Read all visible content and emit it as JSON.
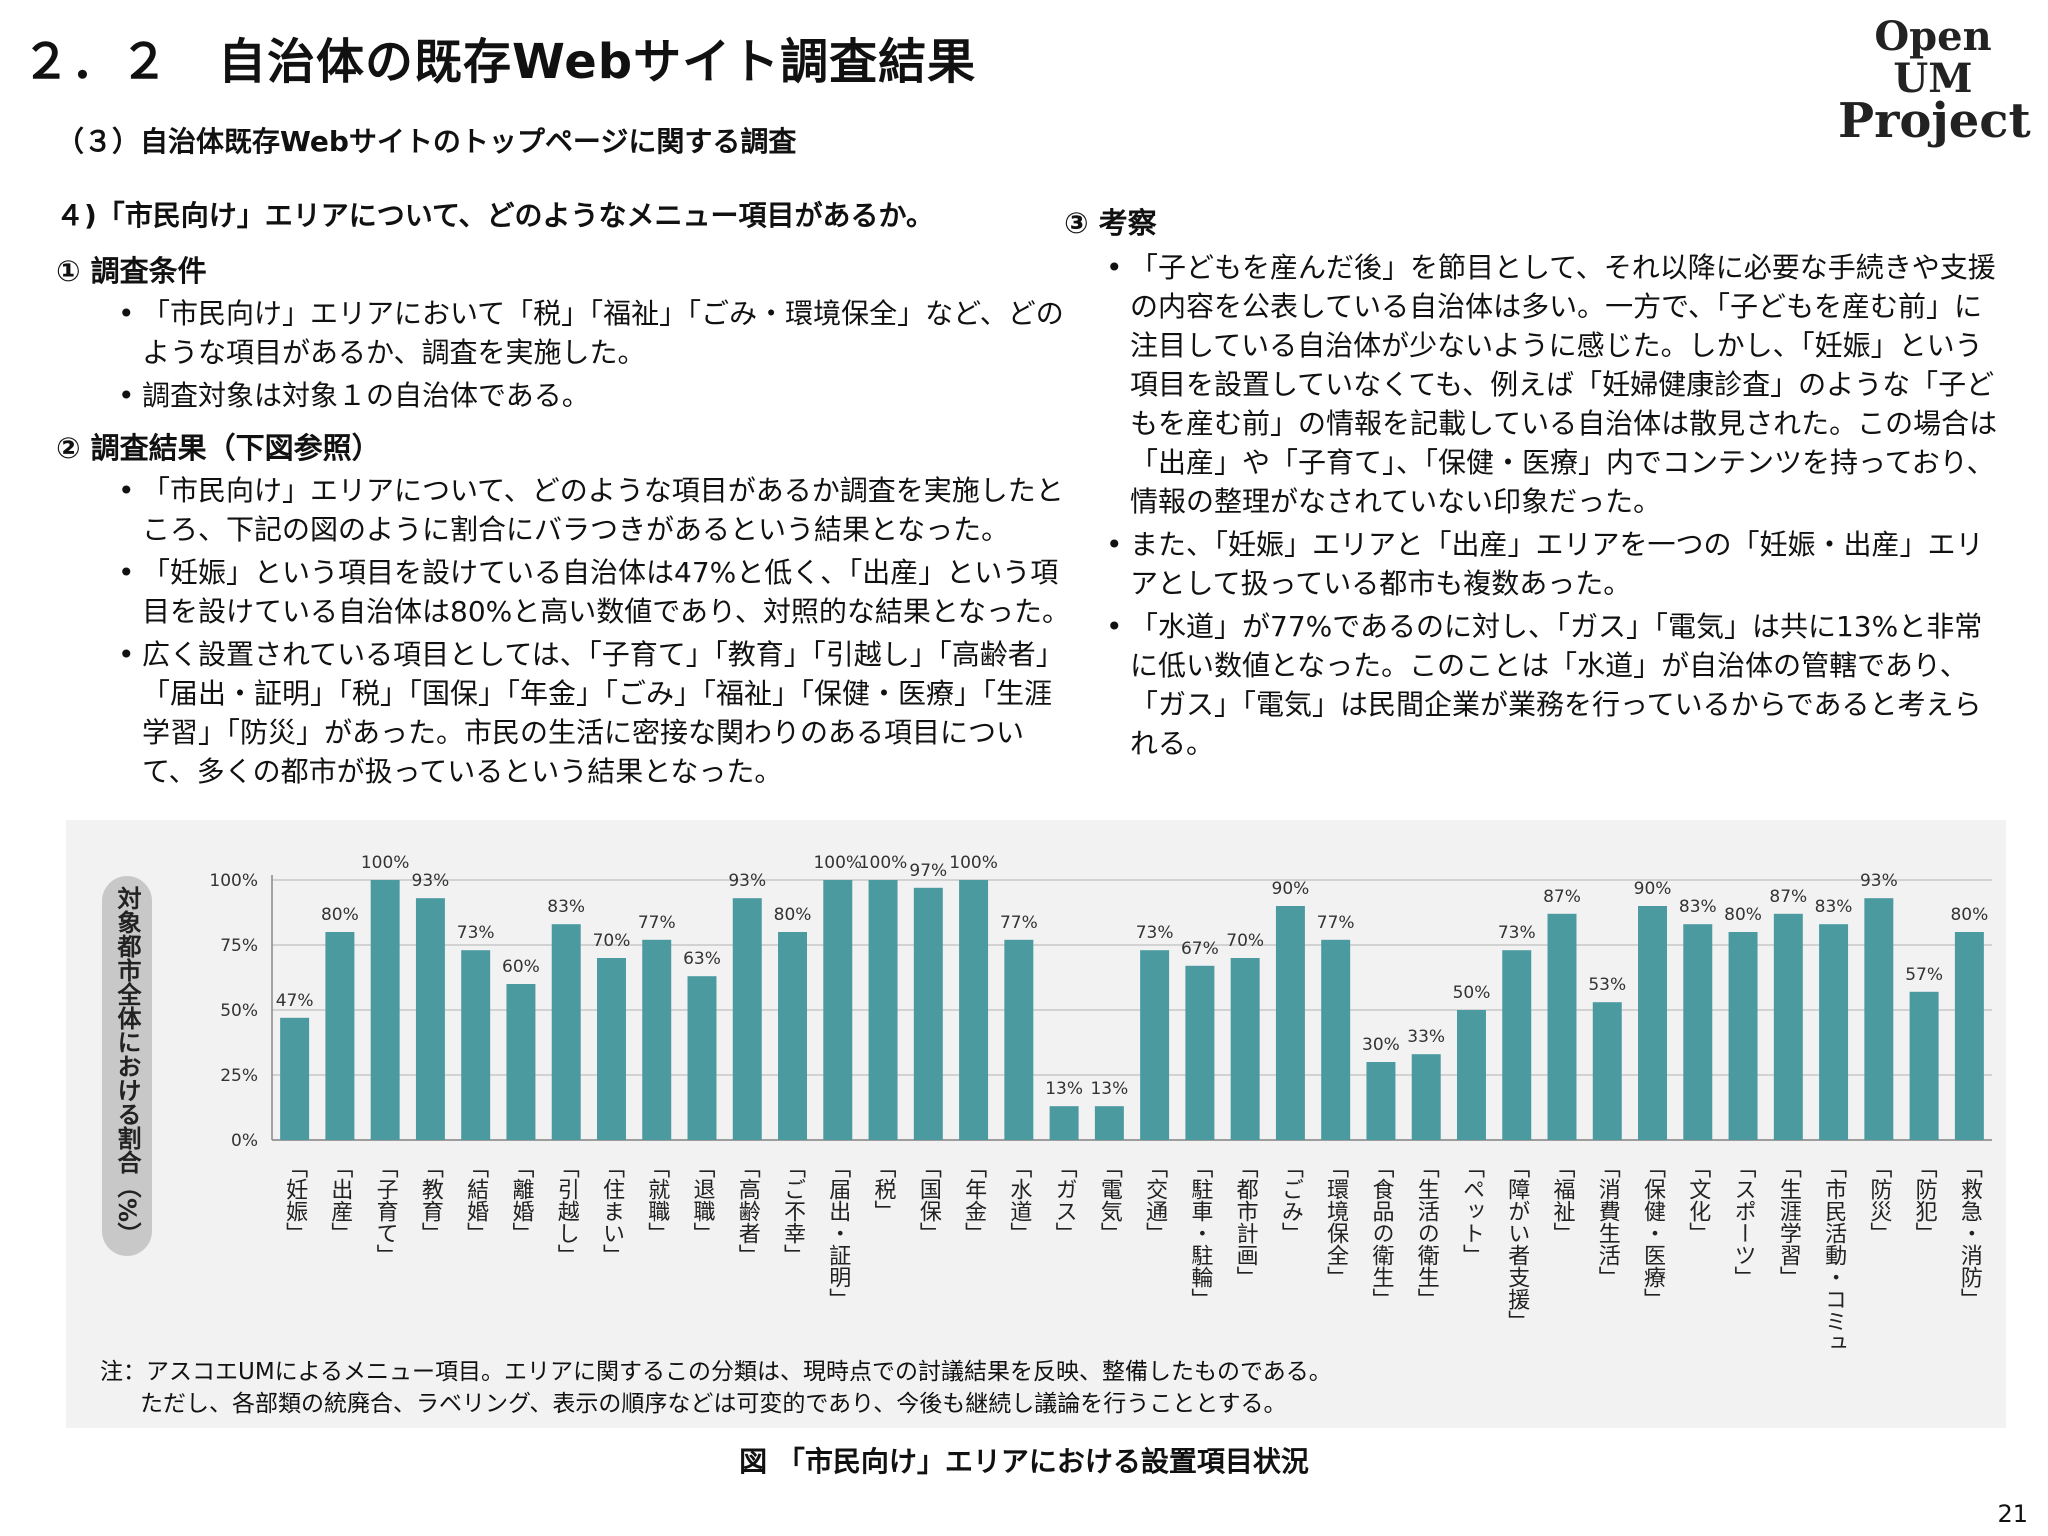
{
  "header": {
    "title": "２．２　自治体の既存Webサイト調査結果",
    "logo_line1": "Open UM",
    "logo_line2": "Project",
    "sub_heading": "（３）自治体既存Webサイトのトップページに関する調査",
    "question": "４)「市民向け」エリアについて、どのようなメニュー項目があるか。"
  },
  "left": {
    "sec1_title": "① 調査条件",
    "sec1_bullets": [
      "「市民向け」エリアにおいて「税」「福祉」「ごみ・環境保全」など、どのような項目があるか、調査を実施した。",
      "調査対象は対象１の自治体である。"
    ],
    "sec2_title": "② 調査結果（下図参照）",
    "sec2_bullets": [
      "「市民向け」エリアについて、どのような項目があるか調査を実施したところ、下記の図のように割合にバラつきがあるという結果となった。",
      "「妊娠」という項目を設けている自治体は47%と低く、「出産」という項目を設けている自治体は80%と高い数値であり、対照的な結果となった。",
      "広く設置されている項目としては、「子育て」「教育」「引越し」「高齢者」「届出・証明」「税」「国保」「年金」「ごみ」「福祉」「保健・医療」「生涯学習」「防災」があった。市民の生活に密接な関わりのある項目について、多くの都市が扱っているという結果となった。"
    ]
  },
  "right": {
    "sec3_title": "③ 考察",
    "sec3_bullets": [
      "「子どもを産んだ後」を節目として、それ以降に必要な手続きや支援の内容を公表している自治体は多い。一方で、「子どもを産む前」に注目している自治体が少ないように感じた。しかし、「妊娠」という項目を設置していなくても、例えば「妊婦健康診査」のような「子どもを産む前」の情報を記載している自治体は散見された。この場合は「出産」や「子育て」、「保健・医療」内でコンテンツを持っており、情報の整理がなされていない印象だった。",
      "また、「妊娠」エリアと「出産」エリアを一つの「妊娠・出産」エリアとして扱っている都市も複数あった。",
      "「水道」が77%であるのに対し、「ガス」「電気」は共に13%と非常に低い数値となった。このことは「水道」が自治体の管轄であり、「ガス」「電気」は民間企業が業務を行っているからであると考えられる。"
    ]
  },
  "chart_data": {
    "type": "bar",
    "ylabel": "対象都市全体における割合（%）",
    "ylim": [
      0,
      100
    ],
    "yticks": [
      0,
      25,
      50,
      75,
      100
    ],
    "ytick_labels": [
      "0%",
      "25%",
      "50%",
      "75%",
      "100%"
    ],
    "grid": true,
    "bar_color": "#4a9aa0",
    "categories": [
      "「妊娠」",
      "「出産」",
      "「子育て」",
      "「教育」",
      "「結婚」",
      "「離婚」",
      "「引越し」",
      "「住まい」",
      "「就職」",
      "「退職」",
      "「高齢者」",
      "「ご不幸」",
      "「届出・証明」",
      "「税」",
      "「国保」",
      "「年金」",
      "「水道」",
      "「ガス」",
      "「電気」",
      "「交通」",
      "「駐車・駐輪」",
      "「都市計画」",
      "「ごみ」",
      "「環境保全」",
      "「食品の衛生」",
      "「生活の衛生」",
      "「ペット」",
      "「障がい者支援」",
      "「福祉」",
      "「消費生活」",
      "「保健・医療」",
      "「文化」",
      "「スポーツ」",
      "「生涯学習」",
      "「市民活動・コミュニティ」",
      "「防災」",
      "「防犯」",
      "「救急・消防」"
    ],
    "values": [
      47,
      80,
      100,
      93,
      73,
      60,
      83,
      70,
      77,
      63,
      93,
      80,
      100,
      100,
      97,
      100,
      77,
      13,
      13,
      73,
      67,
      70,
      90,
      77,
      30,
      33,
      50,
      73,
      87,
      53,
      90,
      83,
      80,
      87,
      83,
      93,
      57,
      80
    ],
    "value_labels": [
      "47%",
      "80%",
      "100%",
      "93%",
      "73%",
      "60%",
      "83%",
      "70%",
      "77%",
      "63%",
      "93%",
      "80%",
      "100%",
      "100%",
      "97%",
      "100%",
      "77%",
      "13%",
      "13%",
      "73%",
      "67%",
      "70%",
      "90%",
      "77%",
      "30%",
      "33%",
      "50%",
      "73%",
      "87%",
      "53%",
      "90%",
      "83%",
      "80%",
      "87%",
      "83%",
      "93%",
      "57%",
      "80%"
    ]
  },
  "note": {
    "line1": "注：アスコエUMによるメニュー項目。エリアに関するこの分類は、現時点での討議結果を反映、整備したものである。",
    "line2": "ただし、各部類の統廃合、ラベリング、表示の順序などは可変的であり、今後も継続し議論を行うこととする。"
  },
  "caption": "図 「市民向け」エリアにおける設置項目状況",
  "page_number": "21"
}
